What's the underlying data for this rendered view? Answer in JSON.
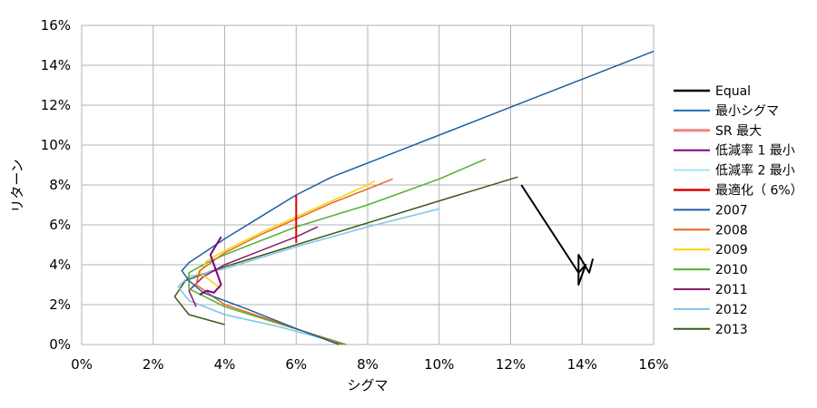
{
  "chart_data": {
    "type": "line",
    "title": "",
    "xlabel": "シグマ",
    "ylabel": "リターン",
    "xlim": [
      0,
      16
    ],
    "ylim": [
      0,
      16
    ],
    "xticks": [
      "0%",
      "2%",
      "4%",
      "6%",
      "8%",
      "10%",
      "12%",
      "14%",
      "16%"
    ],
    "yticks": [
      "0%",
      "2%",
      "4%",
      "6%",
      "8%",
      "10%",
      "12%",
      "14%",
      "16%"
    ],
    "grid": true,
    "legend_position": "right",
    "series": [
      {
        "name": "Equal",
        "color": "#000000",
        "points": [
          [
            12.3,
            8.0
          ],
          [
            13.9,
            3.6
          ],
          [
            14.1,
            4.0
          ],
          [
            13.9,
            3.0
          ],
          [
            13.9,
            4.5
          ],
          [
            14.2,
            3.6
          ],
          [
            14.3,
            4.3
          ]
        ]
      },
      {
        "name": "最小シグマ",
        "color": "#1f6fb2",
        "points": []
      },
      {
        "name": "SR 最大",
        "color": "#f08080",
        "points": []
      },
      {
        "name": "低減率 1 最小",
        "color": "#800080",
        "points": [
          [
            3.3,
            2.5
          ],
          [
            3.5,
            2.7
          ],
          [
            3.7,
            2.6
          ],
          [
            3.9,
            3.0
          ],
          [
            3.6,
            4.5
          ],
          [
            3.9,
            5.4
          ]
        ]
      },
      {
        "name": "低減率 2 最小",
        "color": "#a6e3f5",
        "points": []
      },
      {
        "name": "最適化（ 6%）",
        "color": "#dd0000",
        "points": [
          [
            6.0,
            5.1
          ],
          [
            6.0,
            7.5
          ]
        ]
      },
      {
        "name": "2007",
        "color": "#1f5f9f",
        "points": [
          [
            7.2,
            0.0
          ],
          [
            6.0,
            0.8
          ],
          [
            4.6,
            1.8
          ],
          [
            3.4,
            2.6
          ],
          [
            3.0,
            3.2
          ],
          [
            2.8,
            3.7
          ],
          [
            3.0,
            4.1
          ],
          [
            3.5,
            4.7
          ],
          [
            4.0,
            5.3
          ],
          [
            5.0,
            6.4
          ],
          [
            6.0,
            7.5
          ],
          [
            7.0,
            8.4
          ],
          [
            8.0,
            9.1
          ],
          [
            9.0,
            9.8
          ],
          [
            10.0,
            10.5
          ],
          [
            12.0,
            11.9
          ],
          [
            14.0,
            13.3
          ],
          [
            16.0,
            14.7
          ]
        ]
      },
      {
        "name": "2008",
        "color": "#e8651a",
        "points": [
          [
            7.3,
            0.0
          ],
          [
            5.5,
            1.1
          ],
          [
            4.0,
            2.0
          ],
          [
            3.2,
            3.0
          ],
          [
            3.3,
            3.7
          ],
          [
            4.0,
            4.6
          ],
          [
            5.0,
            5.5
          ],
          [
            6.0,
            6.3
          ],
          [
            7.0,
            7.1
          ],
          [
            8.0,
            7.8
          ],
          [
            8.7,
            8.3
          ]
        ]
      },
      {
        "name": "2009",
        "color": "#f5d400",
        "points": [
          [
            3.9,
            2.8
          ],
          [
            3.3,
            3.6
          ],
          [
            3.5,
            4.2
          ],
          [
            4.0,
            4.7
          ],
          [
            5.0,
            5.6
          ],
          [
            6.0,
            6.4
          ],
          [
            7.0,
            7.2
          ],
          [
            8.0,
            8.0
          ],
          [
            8.2,
            8.2
          ]
        ]
      },
      {
        "name": "2010",
        "color": "#50b030",
        "points": [
          [
            7.4,
            0.0
          ],
          [
            5.6,
            1.0
          ],
          [
            4.0,
            1.9
          ],
          [
            3.0,
            2.8
          ],
          [
            3.0,
            3.6
          ],
          [
            3.5,
            4.1
          ],
          [
            4.0,
            4.5
          ],
          [
            6.0,
            5.9
          ],
          [
            8.0,
            7.0
          ],
          [
            10.0,
            8.3
          ],
          [
            11.3,
            9.3
          ]
        ]
      },
      {
        "name": "2011",
        "color": "#8b1a6f",
        "points": [
          [
            3.2,
            1.9
          ],
          [
            3.0,
            2.7
          ],
          [
            3.4,
            3.4
          ],
          [
            4.0,
            4.0
          ],
          [
            5.0,
            4.7
          ],
          [
            6.0,
            5.4
          ],
          [
            6.6,
            5.9
          ]
        ]
      },
      {
        "name": "2012",
        "color": "#7cc4e8",
        "points": [
          [
            7.4,
            0.0
          ],
          [
            5.5,
            0.9
          ],
          [
            4.0,
            1.5
          ],
          [
            3.0,
            2.2
          ],
          [
            2.7,
            2.9
          ],
          [
            3.0,
            3.4
          ],
          [
            4.0,
            3.8
          ],
          [
            6.0,
            4.9
          ],
          [
            8.0,
            5.9
          ],
          [
            10.0,
            6.8
          ]
        ]
      },
      {
        "name": "2013",
        "color": "#3a5a16",
        "points": [
          [
            4.0,
            1.0
          ],
          [
            3.0,
            1.5
          ],
          [
            2.6,
            2.4
          ],
          [
            2.9,
            3.2
          ],
          [
            3.5,
            3.6
          ],
          [
            4.0,
            3.9
          ],
          [
            6.0,
            5.0
          ],
          [
            8.0,
            6.1
          ],
          [
            10.0,
            7.2
          ],
          [
            12.2,
            8.4
          ]
        ]
      }
    ]
  }
}
